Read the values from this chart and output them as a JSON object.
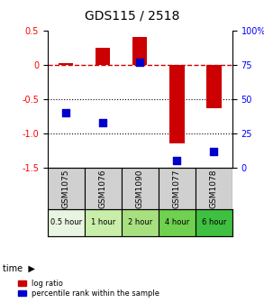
{
  "title": "GDS115 / 2518",
  "samples": [
    "GSM1075",
    "GSM1076",
    "GSM1090",
    "GSM1077",
    "GSM1078"
  ],
  "time_labels": [
    "0.5 hour",
    "1 hour",
    "2 hour",
    "4 hour",
    "6 hour"
  ],
  "log_ratios": [
    0.02,
    0.25,
    0.4,
    -1.15,
    -0.63
  ],
  "percentile_ranks": [
    40,
    33,
    77,
    5,
    12
  ],
  "ylim_left": [
    -1.5,
    0.5
  ],
  "ylim_right": [
    0,
    100
  ],
  "bar_color": "#cc0000",
  "dot_color": "#0000cc",
  "zero_line_color": "#cc0000",
  "grid_color": "#000000",
  "background_color": "#ffffff",
  "plot_bg_color": "#ffffff",
  "time_colors": [
    "#e8f5e0",
    "#c8eeaa",
    "#a8e080",
    "#70d050",
    "#40c040"
  ],
  "sample_bg_color": "#d0d0d0",
  "bar_width": 0.4,
  "dot_size": 40,
  "yticks_left": [
    0.5,
    0.0,
    -0.5,
    -1.0,
    -1.5
  ],
  "yticks_right": [
    100,
    75,
    50,
    25,
    0
  ],
  "legend_entries": [
    "log ratio",
    "percentile rank within the sample"
  ]
}
